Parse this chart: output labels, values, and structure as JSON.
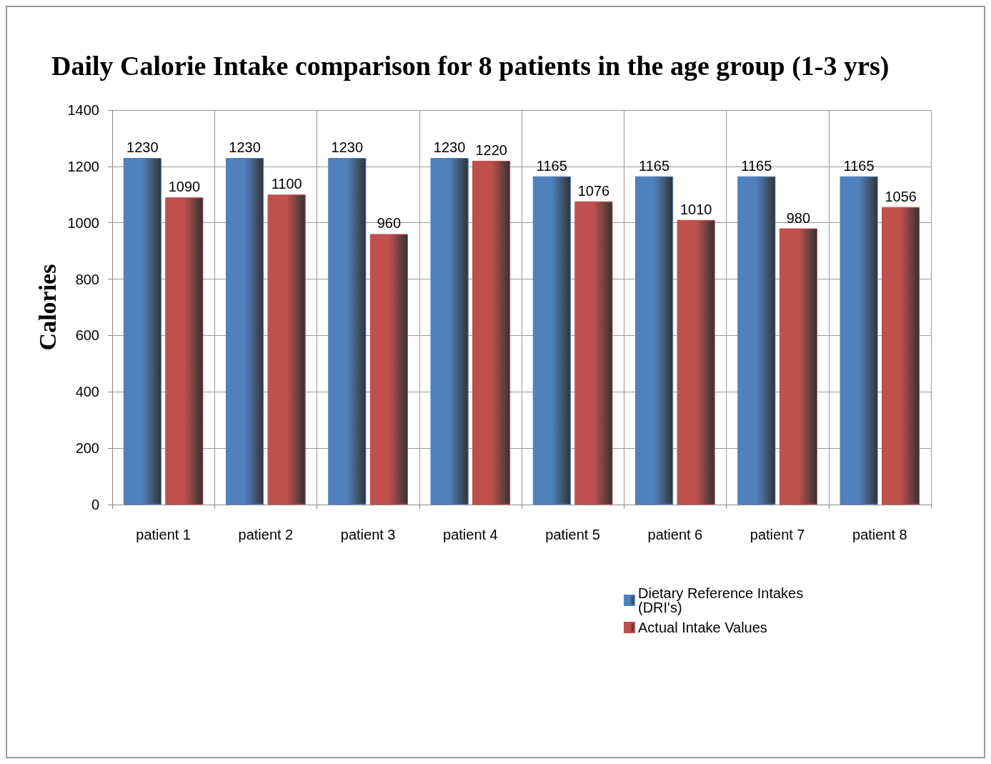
{
  "chart_data": {
    "type": "bar",
    "title": "Daily Calorie Intake comparison for 8 patients in the age group (1-3 yrs)",
    "ylabel": "Calories",
    "categories": [
      "patient 1",
      "patient 2",
      "patient 3",
      "patient 4",
      "patient 5",
      "patient 6",
      "patient 7",
      "patient 8"
    ],
    "series": [
      {
        "name": "Dietary Reference Intakes (DRI's)",
        "color": "#4f81bd",
        "values": [
          1230,
          1230,
          1230,
          1230,
          1165,
          1165,
          1165,
          1165
        ]
      },
      {
        "name": "Actual Intake Values",
        "color": "#c0504d",
        "values": [
          1090,
          1100,
          960,
          1220,
          1076,
          1010,
          980,
          1056
        ]
      }
    ],
    "ylim": [
      0,
      1400
    ],
    "yticks": [
      0,
      200,
      400,
      600,
      800,
      1000,
      1200,
      1400
    ],
    "grid": true,
    "legend": "bottom right",
    "data_labels": true
  }
}
